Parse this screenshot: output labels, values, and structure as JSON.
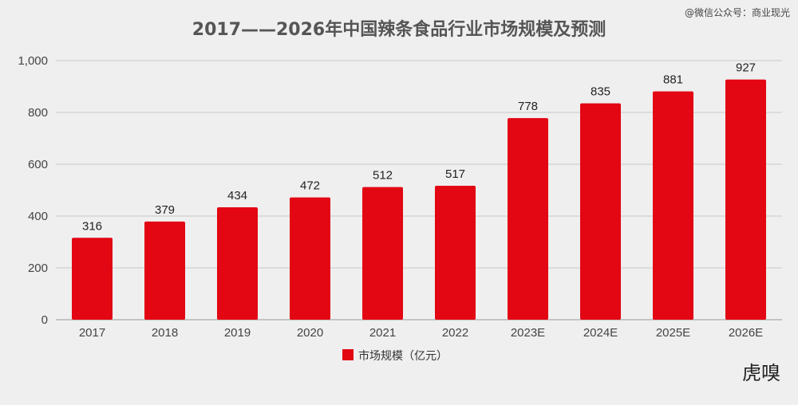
{
  "title": "2017——2026年中国辣条食品行业市场规模及预测",
  "watermark": "@微信公众号：商业现光",
  "logo": "虎嗅",
  "colors": {
    "bar": "#e30613",
    "grid": "#c8c8c8",
    "axis": "#999999"
  },
  "chart_data": {
    "type": "bar",
    "categories": [
      "2017",
      "2018",
      "2019",
      "2020",
      "2021",
      "2022",
      "2023E",
      "2024E",
      "2025E",
      "2026E"
    ],
    "series": [
      {
        "name": "市场规模（亿元）",
        "values": [
          316,
          379,
          434,
          472,
          512,
          517,
          778,
          835,
          881,
          927
        ]
      }
    ],
    "ylim": [
      0,
      1000
    ],
    "yticks": [
      0,
      200,
      400,
      600,
      800,
      1000
    ],
    "ytick_labels": [
      "0",
      "200",
      "400",
      "600",
      "800",
      "1,000"
    ],
    "grid": true,
    "legend": "bottom"
  }
}
